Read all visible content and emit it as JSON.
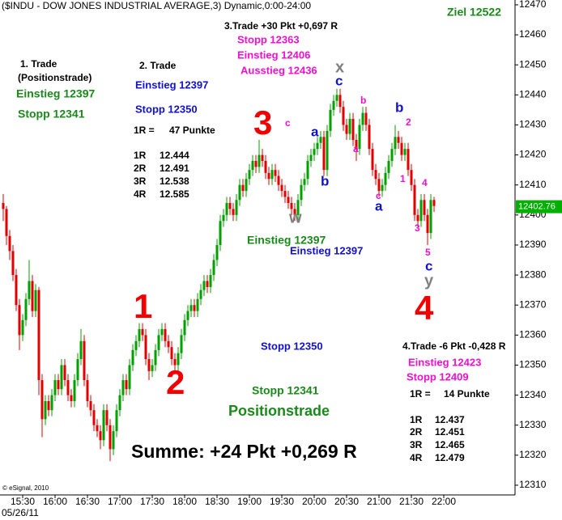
{
  "chart_data": {
    "type": "candlestick",
    "title": "($INDU - DOW JONES INDUSTRIAL AVERAGE,3) Dynamic,0:00-24:00",
    "categories": [
      null,
      null,
      null,
      null,
      null,
      null,
      "15:30",
      null,
      null,
      null,
      null,
      null,
      null,
      null,
      null,
      null,
      "16:00",
      null,
      null,
      null,
      null,
      null,
      null,
      null,
      null,
      null,
      "16:30",
      null,
      null,
      null,
      null,
      null,
      null,
      null,
      null,
      null,
      "17:00",
      null,
      null,
      null,
      null,
      null,
      null,
      null,
      null,
      null,
      "17:30",
      null,
      null,
      null,
      null,
      null,
      null,
      null,
      null,
      null,
      "18:00",
      null,
      null,
      null,
      null,
      null,
      null,
      null,
      null,
      null,
      "18:30",
      null,
      null,
      null,
      null,
      null,
      null,
      null,
      null,
      null,
      "19:00",
      null,
      null,
      null,
      null,
      null,
      null,
      null,
      null,
      null,
      "19:30",
      null,
      null,
      null,
      null,
      null,
      null,
      null,
      null,
      null,
      "20:00",
      null,
      null,
      null,
      null,
      null,
      null,
      null,
      null,
      null,
      "20:30",
      null,
      null,
      null,
      null,
      null,
      null,
      null,
      null,
      null,
      "21:00",
      null,
      null,
      null,
      null,
      null,
      null,
      null,
      null,
      null,
      "21:30",
      null,
      null,
      null,
      null,
      null,
      null,
      null,
      null,
      null,
      "22:00"
    ],
    "date": "05/26/11",
    "ohlc": [
      [
        12404,
        12407,
        12398,
        12402
      ],
      [
        12402,
        12403,
        12390,
        12393
      ],
      [
        12393,
        12395,
        12385,
        12388
      ],
      [
        12388,
        12390,
        12378,
        12380
      ],
      [
        12380,
        12382,
        12368,
        12370
      ],
      [
        12370,
        12372,
        12355,
        12360
      ],
      [
        12360,
        12367,
        12358,
        12365
      ],
      [
        12365,
        12374,
        12363,
        12372
      ],
      [
        12372,
        12385,
        12370,
        12378
      ],
      [
        12378,
        12380,
        12366,
        12368
      ],
      [
        12368,
        12377,
        12366,
        12375
      ],
      [
        12375,
        12376,
        12340,
        12345
      ],
      [
        12345,
        12347,
        12326,
        12332
      ],
      [
        12332,
        12340,
        12330,
        12338
      ],
      [
        12338,
        12340,
        12333,
        12335
      ],
      [
        12335,
        12342,
        12333,
        12340
      ],
      [
        12340,
        12347,
        12338,
        12345
      ],
      [
        12345,
        12347,
        12340,
        12342
      ],
      [
        12342,
        12352,
        12340,
        12350
      ],
      [
        12350,
        12352,
        12343,
        12345
      ],
      [
        12345,
        12347,
        12338,
        12340
      ],
      [
        12340,
        12342,
        12336,
        12338
      ],
      [
        12338,
        12347,
        12336,
        12345
      ],
      [
        12345,
        12354,
        12343,
        12352
      ],
      [
        12352,
        12362,
        12350,
        12358
      ],
      [
        12358,
        12360,
        12343,
        12345
      ],
      [
        12345,
        12347,
        12336,
        12338
      ],
      [
        12338,
        12340,
        12333,
        12335
      ],
      [
        12335,
        12337,
        12328,
        12330
      ],
      [
        12330,
        12332,
        12326,
        12328
      ],
      [
        12328,
        12330,
        12322,
        12325
      ],
      [
        12325,
        12337,
        12323,
        12335
      ],
      [
        12335,
        12337,
        12328,
        12330
      ],
      [
        12330,
        12332,
        12318,
        12322
      ],
      [
        12322,
        12330,
        12320,
        12328
      ],
      [
        12328,
        12337,
        12326,
        12335
      ],
      [
        12335,
        12342,
        12333,
        12340
      ],
      [
        12340,
        12347,
        12338,
        12345
      ],
      [
        12345,
        12347,
        12340,
        12342
      ],
      [
        12342,
        12352,
        12340,
        12350
      ],
      [
        12350,
        12357,
        12348,
        12355
      ],
      [
        12355,
        12360,
        12353,
        12358
      ],
      [
        12358,
        12364,
        12356,
        12362
      ],
      [
        12362,
        12364,
        12358,
        12360
      ],
      [
        12360,
        12362,
        12350,
        12352
      ],
      [
        12352,
        12354,
        12345,
        12348
      ],
      [
        12348,
        12352,
        12346,
        12350
      ],
      [
        12350,
        12357,
        12348,
        12355
      ],
      [
        12355,
        12362,
        12353,
        12360
      ],
      [
        12360,
        12364,
        12358,
        12362
      ],
      [
        12362,
        12364,
        12356,
        12358
      ],
      [
        12358,
        12360,
        12354,
        12356
      ],
      [
        12356,
        12358,
        12350,
        12352
      ],
      [
        12352,
        12354,
        12347,
        12350
      ],
      [
        12350,
        12356,
        12348,
        12354
      ],
      [
        12354,
        12362,
        12352,
        12360
      ],
      [
        12360,
        12367,
        12358,
        12365
      ],
      [
        12365,
        12370,
        12363,
        12368
      ],
      [
        12368,
        12372,
        12366,
        12370
      ],
      [
        12370,
        12372,
        12366,
        12368
      ],
      [
        12368,
        12374,
        12366,
        12372
      ],
      [
        12372,
        12377,
        12370,
        12375
      ],
      [
        12375,
        12380,
        12373,
        12378
      ],
      [
        12378,
        12380,
        12374,
        12376
      ],
      [
        12376,
        12382,
        12374,
        12380
      ],
      [
        12380,
        12387,
        12378,
        12385
      ],
      [
        12385,
        12392,
        12383,
        12390
      ],
      [
        12390,
        12400,
        12388,
        12398
      ],
      [
        12398,
        12402,
        12396,
        12400
      ],
      [
        12400,
        12406,
        12398,
        12404
      ],
      [
        12404,
        12406,
        12400,
        12402
      ],
      [
        12402,
        12404,
        12398,
        12400
      ],
      [
        12400,
        12407,
        12398,
        12405
      ],
      [
        12405,
        12412,
        12403,
        12410
      ],
      [
        12410,
        12412,
        12406,
        12408
      ],
      [
        12408,
        12414,
        12406,
        12412
      ],
      [
        12412,
        12417,
        12410,
        12415
      ],
      [
        12415,
        12420,
        12413,
        12418
      ],
      [
        12418,
        12420,
        12414,
        12416
      ],
      [
        12416,
        12425,
        12414,
        12420
      ],
      [
        12420,
        12422,
        12416,
        12418
      ],
      [
        12418,
        12420,
        12412,
        12414
      ],
      [
        12414,
        12416,
        12410,
        12412
      ],
      [
        12412,
        12417,
        12410,
        12415
      ],
      [
        12415,
        12417,
        12411,
        12413
      ],
      [
        12413,
        12415,
        12408,
        12410
      ],
      [
        12410,
        12412,
        12406,
        12408
      ],
      [
        12408,
        12410,
        12404,
        12406
      ],
      [
        12406,
        12408,
        12402,
        12404
      ],
      [
        12404,
        12406,
        12400,
        12402
      ],
      [
        12402,
        12404,
        12398,
        12400
      ],
      [
        12400,
        12407,
        12398,
        12405
      ],
      [
        12405,
        12412,
        12403,
        12410
      ],
      [
        12410,
        12414,
        12408,
        12412
      ],
      [
        12412,
        12420,
        12410,
        12418
      ],
      [
        12418,
        12422,
        12416,
        12420
      ],
      [
        12420,
        12424,
        12418,
        12422
      ],
      [
        12422,
        12426,
        12420,
        12424
      ],
      [
        12424,
        12428,
        12422,
        12426
      ],
      [
        12426,
        12428,
        12413,
        12415
      ],
      [
        12415,
        12430,
        12413,
        12428
      ],
      [
        12428,
        12437,
        12426,
        12435
      ],
      [
        12435,
        12440,
        12433,
        12438
      ],
      [
        12438,
        12442,
        12436,
        12440
      ],
      [
        12440,
        12442,
        12434,
        12436
      ],
      [
        12436,
        12438,
        12428,
        12430
      ],
      [
        12430,
        12432,
        12425,
        12427
      ],
      [
        12427,
        12434,
        12425,
        12432
      ],
      [
        12432,
        12434,
        12423,
        12425
      ],
      [
        12425,
        12427,
        12418,
        12422
      ],
      [
        12422,
        12432,
        12420,
        12430
      ],
      [
        12430,
        12436,
        12428,
        12434
      ],
      [
        12434,
        12436,
        12428,
        12430
      ],
      [
        12430,
        12432,
        12420,
        12422
      ],
      [
        12422,
        12424,
        12413,
        12415
      ],
      [
        12415,
        12417,
        12410,
        12412
      ],
      [
        12412,
        12414,
        12406,
        12408
      ],
      [
        12408,
        12412,
        12406,
        12410
      ],
      [
        12410,
        12416,
        12408,
        12414
      ],
      [
        12414,
        12420,
        12412,
        12418
      ],
      [
        12418,
        12424,
        12416,
        12422
      ],
      [
        12422,
        12430,
        12420,
        12426
      ],
      [
        12426,
        12428,
        12422,
        12424
      ],
      [
        12424,
        12426,
        12418,
        12420
      ],
      [
        12420,
        12424,
        12418,
        12422
      ],
      [
        12422,
        12424,
        12413,
        12415
      ],
      [
        12415,
        12417,
        12408,
        12410
      ],
      [
        12410,
        12412,
        12398,
        12400
      ],
      [
        12400,
        12402,
        12396,
        12398
      ],
      [
        12398,
        12407,
        12396,
        12405
      ],
      [
        12405,
        12407,
        12398,
        12400
      ],
      [
        12400,
        12402,
        12390,
        12394
      ],
      [
        12394,
        12407,
        12392,
        12405
      ],
      [
        12405,
        12406,
        12401,
        12403
      ],
      null,
      null,
      null
    ],
    "up_color": "#00a000",
    "down_color": "#e00000",
    "last_price": 12402.76,
    "last_price_color": "#00b000",
    "ylim": [
      12307.3,
      12471.6
    ],
    "yticks": [
      12310,
      12320,
      12330,
      12340,
      12350,
      12360,
      12370,
      12380,
      12390,
      12400,
      12410,
      12420,
      12430,
      12440,
      12450,
      12460,
      12470
    ],
    "grid": false,
    "annotations": [
      "Ziel 12522",
      "1. Trade",
      "(Positionstrade)",
      "Einstieg 12397",
      "Stopp 12341",
      "2. Trade",
      "Einstieg 12397",
      "Stopp 12350",
      "1R =",
      "47 Punkte",
      "1R",
      "12.444",
      "2R",
      "12.491",
      "3R",
      "12.538",
      "4R",
      "12.585",
      "3.Trade +30 Pkt +0,697 R",
      "Stopp 12363",
      "Einstieg 12406",
      "Ausstieg 12436",
      "1",
      "2",
      "3",
      "4",
      "c",
      "a",
      "b",
      "w",
      "x",
      "c",
      "b",
      "a",
      "c",
      "a",
      "b",
      "2",
      "1",
      "4",
      "3",
      "5",
      "c",
      "y",
      "Einstieg 12397",
      "Einstieg 12397",
      "Stopp 12350",
      "Stopp 12341",
      "Positionstrade",
      "Summe: +24 Pkt +0,269 R",
      "4.Trade -6 Pkt -0,428 R",
      "Einstieg 12423",
      "Stopp 12409",
      "1R =",
      "14 Punkte",
      "1R",
      "12.437",
      "2R",
      "12.451",
      "3R",
      "12.465",
      "4R",
      "12.479",
      "© eSignal, 2010"
    ]
  }
}
